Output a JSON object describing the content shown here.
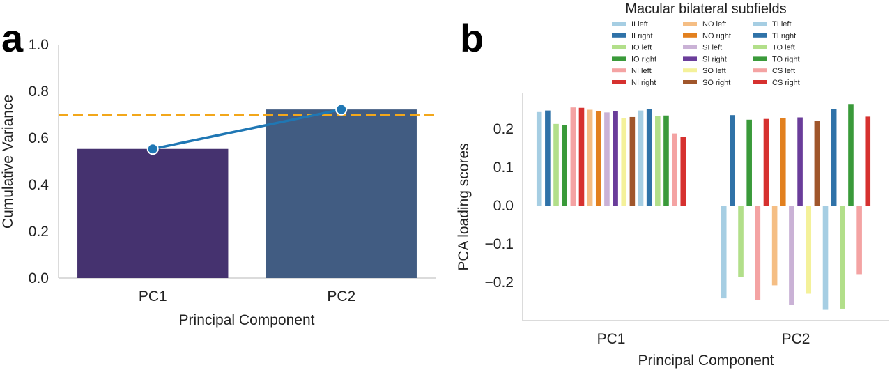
{
  "panel_a_label": "a",
  "panel_b_label": "b",
  "chart_data": [
    {
      "type": "bar",
      "title": "",
      "xlabel": "Principal Component",
      "ylabel": "Cumulative Variance",
      "categories": [
        "PC1",
        "PC2"
      ],
      "values": [
        0.553,
        0.722
      ],
      "bar_colors": [
        "#45326f",
        "#415c82"
      ],
      "line": {
        "values": [
          0.553,
          0.722
        ],
        "color": "#1f77b4"
      },
      "threshold": {
        "value": 0.7,
        "color": "#f2a71b",
        "style": "dashed"
      },
      "ylim": [
        0,
        1.0
      ],
      "yticks": [
        "0.0",
        "0.2",
        "0.4",
        "0.6",
        "0.8",
        "1.0"
      ],
      "grid": false
    },
    {
      "type": "bar",
      "title": "",
      "xlabel": "Principal Component",
      "ylabel": "PCA loading scores",
      "categories": [
        "PC1",
        "PC2"
      ],
      "ylim": [
        -0.28,
        0.28
      ],
      "yticks": [
        "−0.2",
        "−0.1",
        "0.0",
        "0.1",
        "0.2"
      ],
      "grid": false,
      "legend": {
        "title": "Macular bilateral subfields",
        "placement": "top",
        "columns": 3
      },
      "series": [
        {
          "name": "II left",
          "color": "#a6cee3",
          "values": [
            0.244,
            -0.242
          ]
        },
        {
          "name": "II right",
          "color": "#2f72a8",
          "values": [
            0.248,
            0.236
          ]
        },
        {
          "name": "IO left",
          "color": "#b2df8a",
          "values": [
            0.213,
            -0.186
          ]
        },
        {
          "name": "IO right",
          "color": "#3a9a3a",
          "values": [
            0.21,
            0.224
          ]
        },
        {
          "name": "NI left",
          "color": "#f4a3a3",
          "values": [
            0.256,
            -0.247
          ]
        },
        {
          "name": "NI right",
          "color": "#d6312f",
          "values": [
            0.255,
            0.226
          ]
        },
        {
          "name": "NO left",
          "color": "#f5be84",
          "values": [
            0.25,
            -0.208
          ]
        },
        {
          "name": "NO right",
          "color": "#e2801f",
          "values": [
            0.247,
            0.228
          ]
        },
        {
          "name": "SI left",
          "color": "#cab2d6",
          "values": [
            0.243,
            -0.26
          ]
        },
        {
          "name": "SI right",
          "color": "#6a3d9a",
          "values": [
            0.247,
            0.23
          ]
        },
        {
          "name": "SO left",
          "color": "#f4f19a",
          "values": [
            0.229,
            -0.23
          ]
        },
        {
          "name": "SO right",
          "color": "#a0562b",
          "values": [
            0.231,
            0.22
          ]
        },
        {
          "name": "TI left",
          "color": "#a6cee3",
          "values": [
            0.248,
            -0.272
          ]
        },
        {
          "name": "TI right",
          "color": "#2f72a8",
          "values": [
            0.251,
            0.251
          ]
        },
        {
          "name": "TO left",
          "color": "#b2df8a",
          "values": [
            0.234,
            -0.269
          ]
        },
        {
          "name": "TO right",
          "color": "#3a9a3a",
          "values": [
            0.235,
            0.265
          ]
        },
        {
          "name": "CS left",
          "color": "#f4a3a3",
          "values": [
            0.188,
            -0.179
          ]
        },
        {
          "name": "CS right",
          "color": "#d6312f",
          "values": [
            0.18,
            0.232
          ]
        }
      ]
    }
  ]
}
